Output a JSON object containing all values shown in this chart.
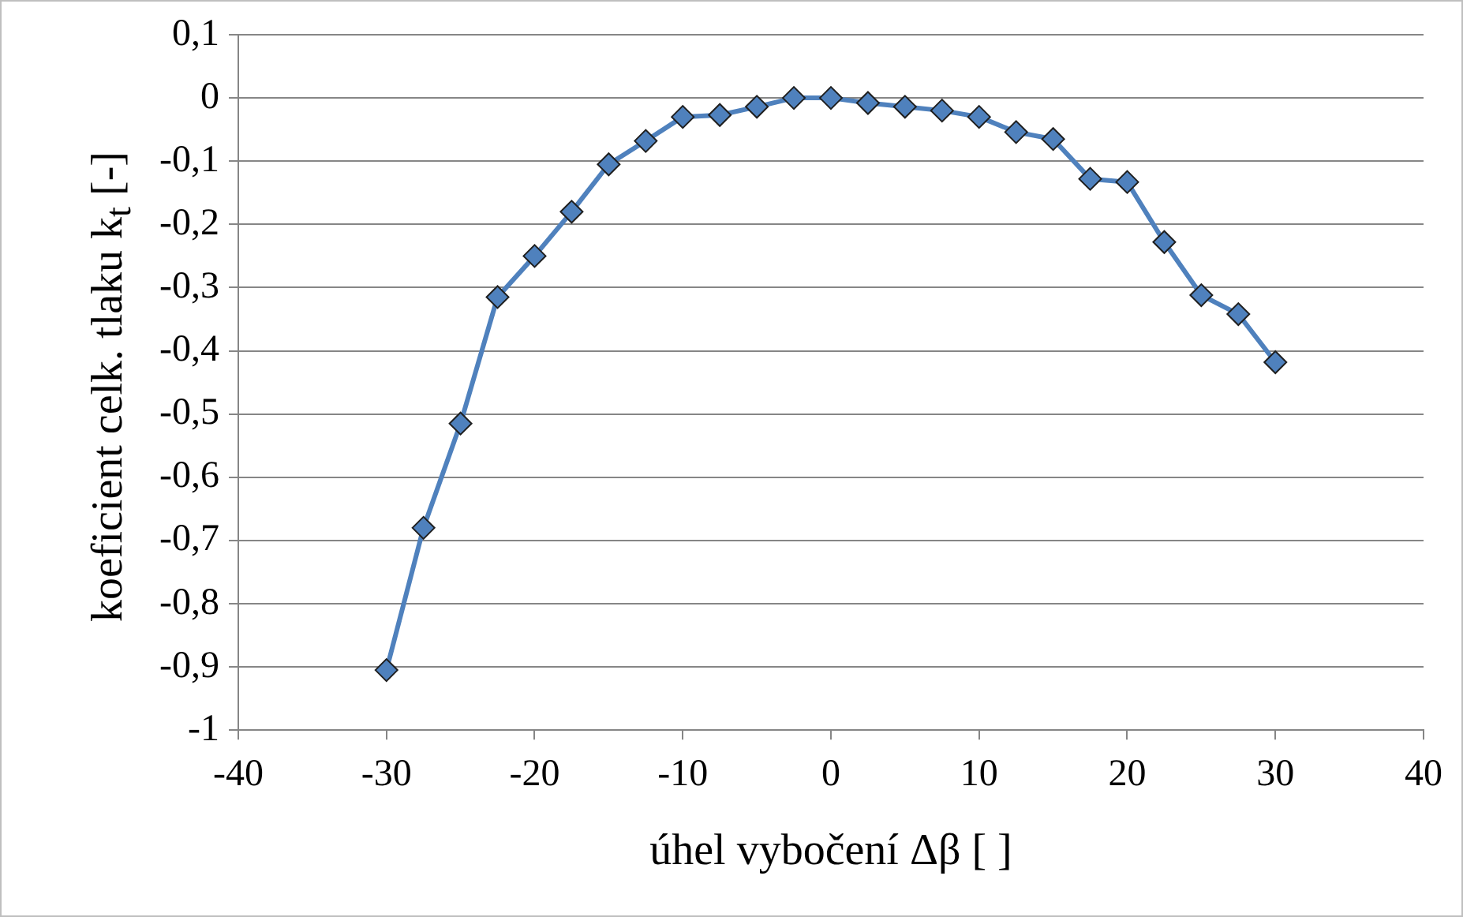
{
  "chart_data": {
    "type": "line",
    "xlabel": "úhel vybočení Δβ [ ]",
    "ylabel": "koeficient celk. tlaku k$_{t}$ [-]",
    "x": [
      -30,
      -27.5,
      -25,
      -22.5,
      -20,
      -17.5,
      -15,
      -12.5,
      -10,
      -7.5,
      -5,
      -2.5,
      0,
      2.5,
      5,
      7.5,
      10,
      12.5,
      15,
      17.5,
      20,
      22.5,
      25,
      27.5,
      30
    ],
    "series": [
      {
        "color": "#4f81bd",
        "values": [
          -0.905,
          -0.68,
          -0.515,
          -0.315,
          -0.25,
          -0.18,
          -0.105,
          -0.068,
          -0.03,
          -0.027,
          -0.014,
          0.0,
          0.0,
          -0.008,
          -0.014,
          -0.02,
          -0.03,
          -0.054,
          -0.065,
          -0.128,
          -0.133,
          -0.228,
          -0.312,
          -0.342,
          -0.418
        ]
      }
    ],
    "xlim": [
      -40,
      40
    ],
    "xticks": [
      -40,
      -30,
      -20,
      -10,
      0,
      10,
      20,
      30,
      40
    ],
    "ylim": [
      -1,
      0.1
    ],
    "yticks": [
      {
        "value": 0.1,
        "label": "0,1"
      },
      0,
      {
        "value": -0.1,
        "label": "-0,1"
      },
      {
        "value": -0.2,
        "label": "-0,2"
      },
      {
        "value": -0.3,
        "label": "-0,3"
      },
      {
        "value": -0.4,
        "label": "-0,4"
      },
      {
        "value": -0.5,
        "label": "-0,5"
      },
      {
        "value": -0.6,
        "label": "-0,6"
      },
      {
        "value": -0.7,
        "label": "-0,7"
      },
      {
        "value": -0.8,
        "label": "-0,8"
      },
      {
        "value": -0.9,
        "label": "-0,9"
      },
      -1
    ],
    "grid": "y",
    "legend": false,
    "marker": "diamond",
    "line_style": "solid"
  }
}
